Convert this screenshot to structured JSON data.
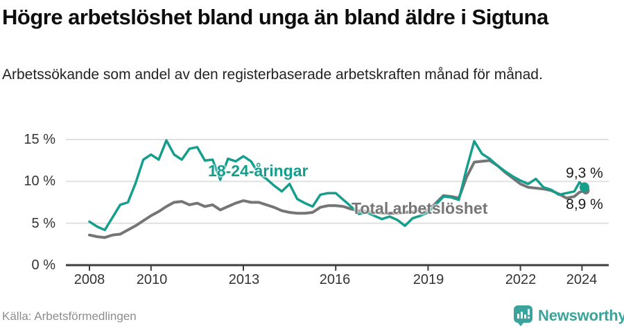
{
  "header": {
    "title": "Högre arbetslöshet bland unga än bland äldre i Sigtuna",
    "subtitle": "Arbetssökande som andel av den registerbaserade arbetskraften månad för månad."
  },
  "footer": {
    "source": "Källa: Arbetsförmedlingen",
    "brand_name": "Newsworthy",
    "brand_icon": "bar-chart-speech-bubble-icon"
  },
  "colors": {
    "youth_line": "#169e8d",
    "total_line": "#757575",
    "grid": "#e0e0e0",
    "axis": "#3d3d3d",
    "tick_text": "#333333",
    "brand_teal": "#3aa39b"
  },
  "chart_data": {
    "type": "line",
    "title": "Högre arbetslöshet bland unga än bland äldre i Sigtuna",
    "xlabel": "",
    "ylabel": "Arbetssökande som andel av den registerbaserade arbetskraften (%)",
    "grid": "horizontal gridlines at 5, 10, 15",
    "legend_position": "inline labels on lines",
    "xlim": [
      2007.25,
      2024.95
    ],
    "ylim": [
      0,
      16.2
    ],
    "xticks": [
      2008,
      2010,
      2013,
      2016,
      2019,
      2022,
      2024
    ],
    "xtick_labels": [
      "2008",
      "2010",
      "2013",
      "2016",
      "2019",
      "2022",
      "2024"
    ],
    "yticks": [
      0,
      5,
      10,
      15
    ],
    "ytick_labels": [
      "0 %",
      "5 %",
      "10 %",
      "15 %"
    ],
    "x_unit": "decimal year, monthly series sampled quarterly",
    "x": [
      2008.0,
      2008.25,
      2008.5,
      2008.75,
      2009.0,
      2009.25,
      2009.5,
      2009.75,
      2010.0,
      2010.25,
      2010.5,
      2010.75,
      2011.0,
      2011.25,
      2011.5,
      2011.75,
      2012.0,
      2012.25,
      2012.5,
      2012.75,
      2013.0,
      2013.25,
      2013.5,
      2013.75,
      2014.0,
      2014.25,
      2014.5,
      2014.75,
      2015.0,
      2015.25,
      2015.5,
      2015.75,
      2016.0,
      2016.25,
      2016.5,
      2016.75,
      2017.0,
      2017.25,
      2017.5,
      2017.75,
      2018.0,
      2018.25,
      2018.5,
      2018.75,
      2019.0,
      2019.25,
      2019.5,
      2019.75,
      2020.0,
      2020.25,
      2020.5,
      2020.75,
      2021.0,
      2021.25,
      2021.5,
      2021.75,
      2022.0,
      2022.25,
      2022.5,
      2022.75,
      2023.0,
      2023.25,
      2023.5,
      2023.75,
      2023.92,
      2024.08
    ],
    "series": [
      {
        "name": "18-24-åringar",
        "color": "#169e8d",
        "end_label": "9,3 %",
        "end_value": 9.3,
        "values": [
          5.2,
          4.6,
          4.2,
          5.7,
          7.2,
          7.5,
          9.8,
          12.6,
          13.2,
          12.6,
          14.9,
          13.2,
          12.6,
          13.9,
          14.1,
          12.5,
          12.6,
          10.2,
          12.7,
          12.4,
          13.0,
          12.4,
          10.9,
          10.3,
          9.5,
          8.8,
          9.7,
          7.9,
          7.4,
          7.0,
          8.4,
          8.6,
          8.6,
          7.8,
          7.0,
          6.1,
          6.3,
          5.9,
          5.5,
          5.8,
          5.4,
          4.7,
          5.6,
          5.9,
          6.3,
          7.2,
          8.2,
          8.1,
          7.8,
          11.5,
          14.8,
          13.3,
          12.7,
          11.9,
          11.2,
          10.6,
          10.1,
          9.7,
          10.3,
          9.3,
          9.0,
          8.4,
          8.6,
          8.8,
          9.9,
          9.3
        ]
      },
      {
        "name": "Total arbetslöshet",
        "color": "#757575",
        "end_label": "8,9 %",
        "end_value": 8.9,
        "values": [
          3.6,
          3.4,
          3.3,
          3.6,
          3.7,
          4.2,
          4.7,
          5.3,
          5.9,
          6.4,
          7.0,
          7.5,
          7.6,
          7.2,
          7.4,
          7.0,
          7.2,
          6.6,
          7.0,
          7.4,
          7.7,
          7.5,
          7.5,
          7.2,
          6.9,
          6.5,
          6.3,
          6.2,
          6.2,
          6.3,
          6.9,
          7.1,
          7.1,
          7.0,
          6.7,
          6.5,
          6.4,
          6.3,
          6.2,
          6.2,
          6.2,
          6.3,
          6.4,
          6.5,
          6.6,
          7.4,
          8.3,
          8.2,
          8.0,
          10.5,
          12.3,
          12.4,
          12.5,
          11.9,
          11.1,
          10.4,
          9.7,
          9.3,
          9.2,
          9.1,
          8.9,
          8.5,
          8.0,
          8.2,
          8.7,
          8.9
        ]
      }
    ]
  }
}
